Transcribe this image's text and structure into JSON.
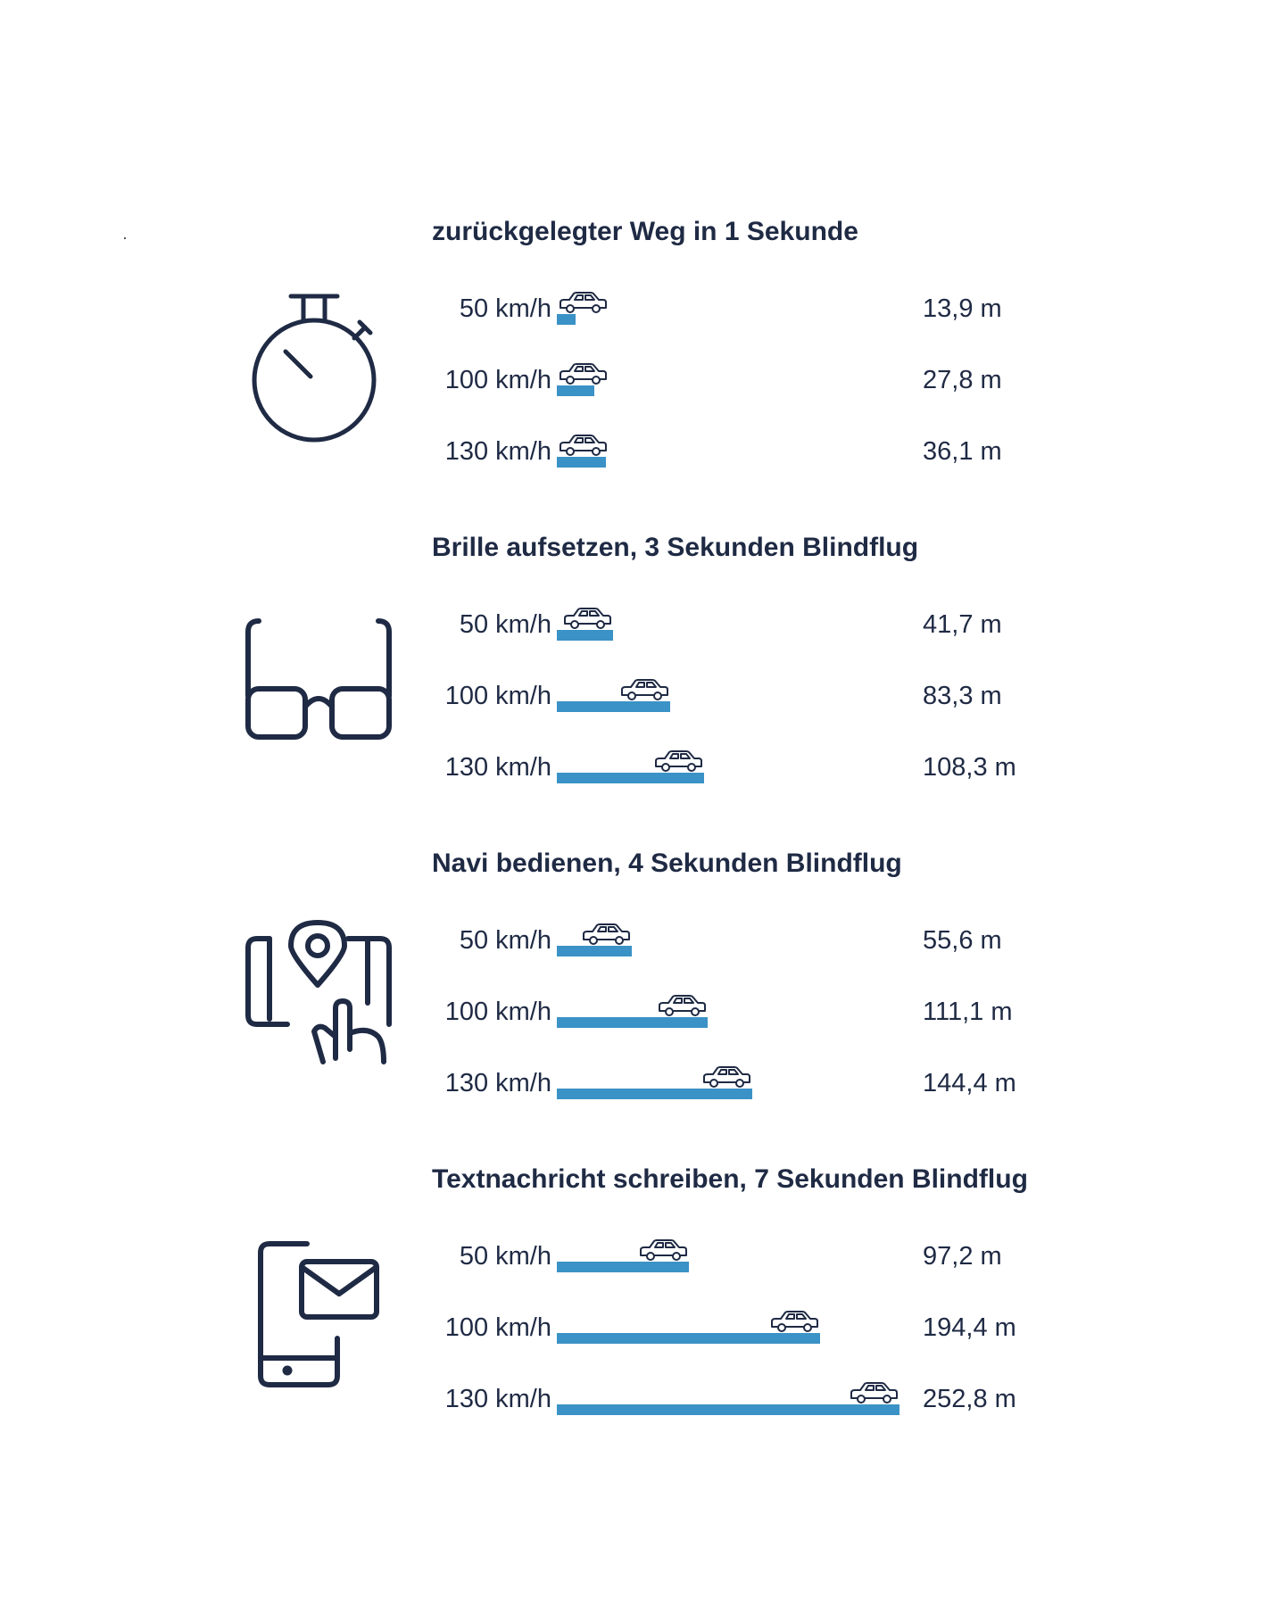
{
  "colors": {
    "bar": "#3a92c6",
    "ink": "#1f2a44"
  },
  "chart_data": [
    {
      "type": "bar",
      "title": "zurückgelegter Weg in 1 Sekunde",
      "icon": "stopwatch-icon",
      "categories": [
        "50 km/h",
        "100 km/h",
        "130 km/h"
      ],
      "values": [
        13.9,
        27.8,
        36.1
      ],
      "value_labels": [
        "13,9 m",
        "27,8 m",
        "36,1 m"
      ],
      "unit": "m",
      "xlim": [
        0,
        252.8
      ]
    },
    {
      "type": "bar",
      "title": "Brille aufsetzen, 3 Sekunden Blindflug",
      "icon": "glasses-icon",
      "categories": [
        "50 km/h",
        "100 km/h",
        "130 km/h"
      ],
      "values": [
        41.7,
        83.3,
        108.3
      ],
      "value_labels": [
        "41,7 m",
        "83,3 m",
        "108,3 m"
      ],
      "unit": "m",
      "xlim": [
        0,
        252.8
      ]
    },
    {
      "type": "bar",
      "title": "Navi bedienen, 4 Sekunden Blindflug",
      "icon": "map-touch-icon",
      "categories": [
        "50 km/h",
        "100 km/h",
        "130 km/h"
      ],
      "values": [
        55.6,
        111.1,
        144.4
      ],
      "value_labels": [
        "55,6 m",
        "111,1 m",
        "144,4 m"
      ],
      "unit": "m",
      "xlim": [
        0,
        252.8
      ]
    },
    {
      "type": "bar",
      "title": "Textnachricht schreiben, 7 Sekunden Blindflug",
      "icon": "phone-message-icon",
      "categories": [
        "50 km/h",
        "100 km/h",
        "130 km/h"
      ],
      "values": [
        97.2,
        194.4,
        252.8
      ],
      "value_labels": [
        "97,2 m",
        "194,4 m",
        "252,8 m"
      ],
      "unit": "m",
      "xlim": [
        0,
        252.8
      ]
    }
  ]
}
